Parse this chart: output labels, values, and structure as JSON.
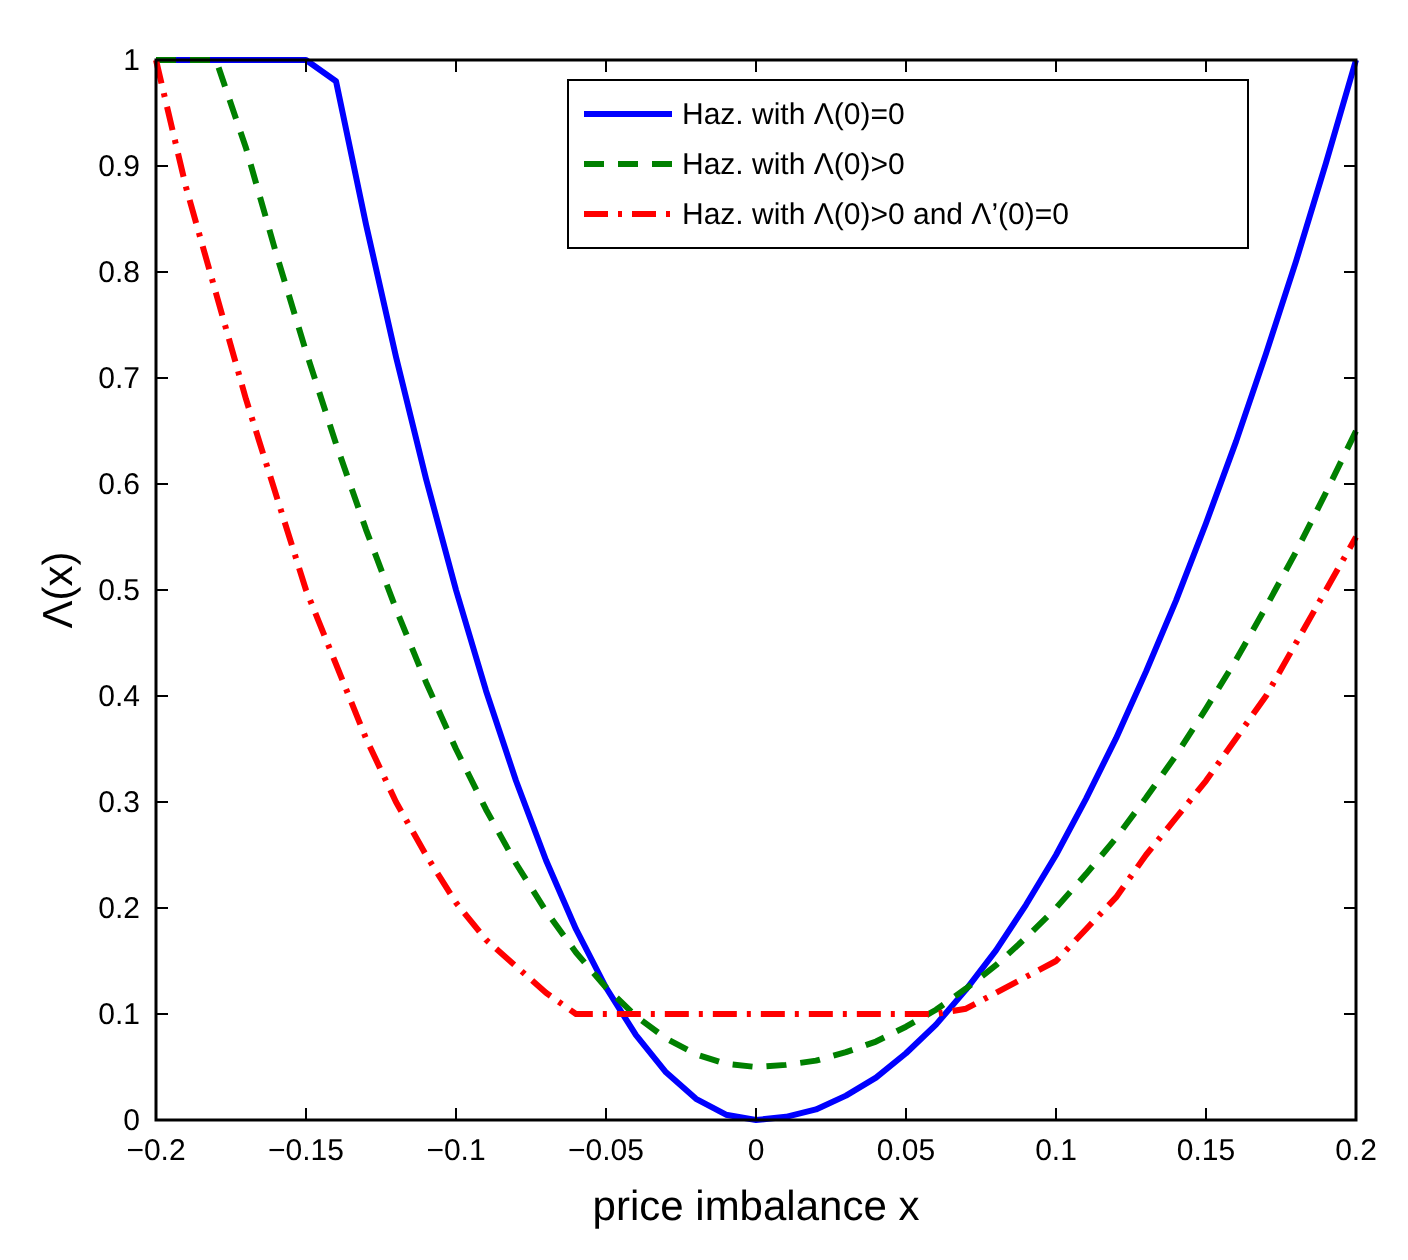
{
  "chart_data": {
    "type": "line",
    "xlabel": "price imbalance x",
    "ylabel": "Λ(x)",
    "x": [
      -0.2,
      -0.19,
      -0.18,
      -0.17,
      -0.16,
      -0.15,
      -0.14,
      -0.13,
      -0.12,
      -0.11,
      -0.1,
      -0.09,
      -0.08,
      -0.07,
      -0.06,
      -0.05,
      -0.04,
      -0.03,
      -0.02,
      -0.01,
      0,
      0.01,
      0.02,
      0.03,
      0.04,
      0.05,
      0.06,
      0.07,
      0.08,
      0.09,
      0.1,
      0.11,
      0.12,
      0.13,
      0.14,
      0.15,
      0.16,
      0.17,
      0.18,
      0.19,
      0.2
    ],
    "series": [
      {
        "name": "Haz. with Λ(0)=0",
        "color": "#0000ff",
        "line_style": "solid",
        "values": [
          1,
          1,
          1,
          1,
          1,
          1,
          0.98,
          0.845,
          0.72,
          0.605,
          0.5,
          0.405,
          0.32,
          0.245,
          0.18,
          0.125,
          0.08,
          0.045,
          0.02,
          0.005,
          0,
          0.003,
          0.01,
          0.023,
          0.04,
          0.063,
          0.09,
          0.123,
          0.16,
          0.203,
          0.25,
          0.303,
          0.36,
          0.423,
          0.49,
          0.563,
          0.64,
          0.723,
          0.81,
          0.903,
          1
        ]
      },
      {
        "name": "Haz. with Λ(0)>0",
        "color": "#008000",
        "line_style": "dashed",
        "values": [
          1,
          1,
          1,
          0.917,
          0.818,
          0.725,
          0.638,
          0.557,
          0.482,
          0.413,
          0.35,
          0.293,
          0.242,
          0.197,
          0.158,
          0.125,
          0.098,
          0.077,
          0.062,
          0.053,
          0.05,
          0.052,
          0.056,
          0.064,
          0.074,
          0.088,
          0.104,
          0.124,
          0.146,
          0.172,
          0.2,
          0.232,
          0.266,
          0.304,
          0.344,
          0.388,
          0.434,
          0.484,
          0.536,
          0.592,
          0.65
        ]
      },
      {
        "name": "Haz. with Λ(0)>0 and Λ’(0)=0",
        "color": "#ff0000",
        "line_style": "dashdot",
        "values": [
          1,
          0.88,
          0.78,
          0.68,
          0.59,
          0.5,
          0.43,
          0.36,
          0.3,
          0.25,
          0.205,
          0.17,
          0.145,
          0.12,
          0.1,
          0.1,
          0.1,
          0.1,
          0.1,
          0.1,
          0.1,
          0.1,
          0.1,
          0.1,
          0.1,
          0.1,
          0.1,
          0.105,
          0.12,
          0.135,
          0.15,
          0.18,
          0.21,
          0.25,
          0.285,
          0.32,
          0.36,
          0.4,
          0.45,
          0.5,
          0.55
        ]
      }
    ],
    "xlim": [
      -0.2,
      0.2
    ],
    "xticks": [
      {
        "value": -0.2,
        "label": "−0.2"
      },
      {
        "value": -0.15,
        "label": "−0.15"
      },
      {
        "value": -0.1,
        "label": "−0.1"
      },
      {
        "value": -0.05,
        "label": "−0.05"
      },
      0,
      0.05,
      0.1,
      0.15,
      0.2
    ],
    "ylim": [
      0,
      1
    ],
    "yticks": [
      0,
      0.1,
      0.2,
      0.3,
      0.4,
      0.5,
      0.6,
      0.7,
      0.8,
      0.9,
      1
    ],
    "grid": false,
    "legend": "top right"
  }
}
